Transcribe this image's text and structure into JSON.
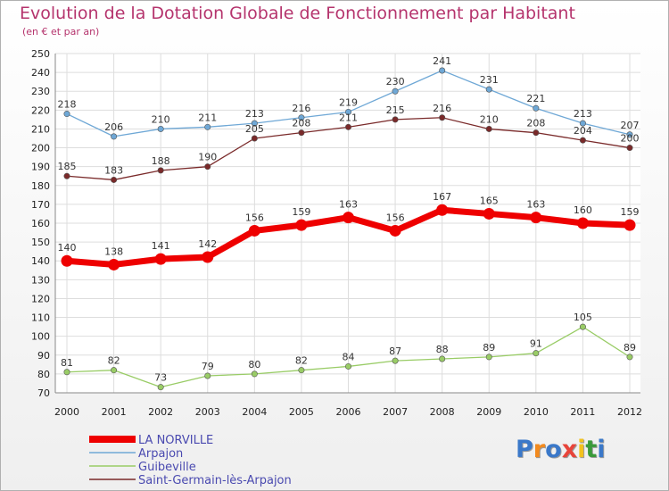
{
  "chart_data": {
    "type": "line",
    "title": "Evolution de la Dotation Globale de Fonctionnement par Habitant",
    "subtitle": "(en € et par an)",
    "x": [
      "2000",
      "2001",
      "2002",
      "2003",
      "2004",
      "2005",
      "2006",
      "2007",
      "2008",
      "2009",
      "2010",
      "2011",
      "2012"
    ],
    "ylim": [
      70,
      250
    ],
    "yticks": [
      70,
      80,
      90,
      100,
      110,
      120,
      130,
      140,
      150,
      160,
      170,
      180,
      190,
      200,
      210,
      220,
      230,
      240,
      250
    ],
    "grid": true,
    "legend_position": "bottom-left",
    "series": [
      {
        "name": "LA NORVILLE",
        "color": "#ee0000",
        "values": [
          140,
          138,
          141,
          142,
          156,
          159,
          163,
          156,
          167,
          165,
          163,
          160,
          159
        ]
      },
      {
        "name": "Arpajon",
        "color": "#6fa8d6",
        "values": [
          218,
          206,
          210,
          211,
          213,
          216,
          219,
          230,
          241,
          231,
          221,
          213,
          207
        ]
      },
      {
        "name": "Guibeville",
        "color": "#99cc66",
        "values": [
          81,
          82,
          73,
          79,
          80,
          82,
          84,
          87,
          88,
          89,
          91,
          105,
          89
        ]
      },
      {
        "name": "Saint-Germain-lès-Arpajon",
        "color": "#7a2a2a",
        "values": [
          185,
          183,
          188,
          190,
          205,
          208,
          211,
          215,
          216,
          210,
          208,
          204,
          200
        ]
      }
    ]
  },
  "logo": {
    "letters": [
      "P",
      "r",
      "o",
      "x",
      "i",
      "t",
      "i"
    ],
    "colors": [
      "#3a78c9",
      "#f28a1e",
      "#3a78c9",
      "#e8443a",
      "#f2c21e",
      "#3a9a3a",
      "#3a78c9"
    ]
  }
}
